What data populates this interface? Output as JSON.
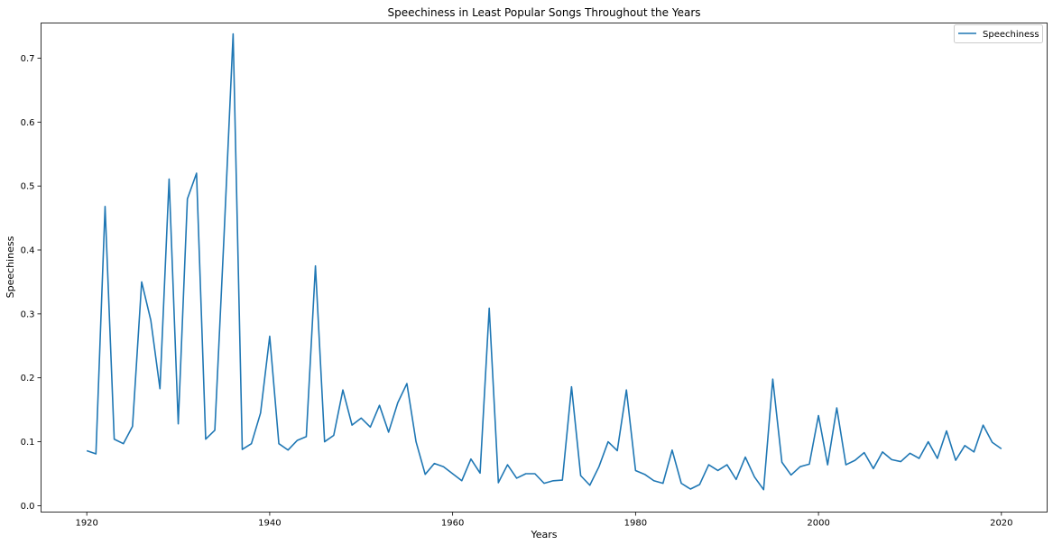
{
  "chart_data": {
    "type": "line",
    "title": "Speechiness in Least Popular Songs Throughout the Years",
    "xlabel": "Years",
    "ylabel": "Speechiness",
    "xlim": [
      1915,
      2025
    ],
    "ylim": [
      -0.01,
      0.755
    ],
    "xticks": [
      1920,
      1940,
      1960,
      1980,
      2000,
      2020
    ],
    "yticks": [
      0.0,
      0.1,
      0.2,
      0.3,
      0.4,
      0.5,
      0.6,
      0.7
    ],
    "ytick_labels": [
      "0.0",
      "0.1",
      "0.2",
      "0.3",
      "0.4",
      "0.5",
      "0.6",
      "0.7"
    ],
    "grid": false,
    "legend_position": "top-right",
    "series": [
      {
        "name": "Speechiness",
        "color": "#1f77b4",
        "x": [
          1920,
          1921,
          1922,
          1923,
          1924,
          1925,
          1926,
          1927,
          1928,
          1929,
          1930,
          1931,
          1932,
          1933,
          1934,
          1935,
          1936,
          1937,
          1938,
          1939,
          1940,
          1941,
          1942,
          1943,
          1944,
          1945,
          1946,
          1947,
          1948,
          1949,
          1950,
          1951,
          1952,
          1953,
          1954,
          1955,
          1956,
          1957,
          1958,
          1959,
          1960,
          1961,
          1962,
          1963,
          1964,
          1965,
          1966,
          1967,
          1968,
          1969,
          1970,
          1971,
          1972,
          1973,
          1974,
          1975,
          1976,
          1977,
          1978,
          1979,
          1980,
          1981,
          1982,
          1983,
          1984,
          1985,
          1986,
          1987,
          1988,
          1989,
          1990,
          1991,
          1992,
          1993,
          1994,
          1995,
          1996,
          1997,
          1998,
          1999,
          2000,
          2001,
          2002,
          2003,
          2004,
          2005,
          2006,
          2007,
          2008,
          2009,
          2010,
          2011,
          2012,
          2013,
          2014,
          2015,
          2016,
          2017,
          2018,
          2019,
          2020
        ],
        "values": [
          0.086,
          0.081,
          0.468,
          0.104,
          0.097,
          0.124,
          0.35,
          0.29,
          0.183,
          0.511,
          0.128,
          0.48,
          0.52,
          0.104,
          0.118,
          0.42,
          0.738,
          0.088,
          0.097,
          0.145,
          0.265,
          0.097,
          0.087,
          0.102,
          0.108,
          0.375,
          0.1,
          0.11,
          0.181,
          0.126,
          0.137,
          0.123,
          0.157,
          0.115,
          0.161,
          0.191,
          0.1,
          0.049,
          0.066,
          0.061,
          0.05,
          0.039,
          0.073,
          0.051,
          0.309,
          0.036,
          0.064,
          0.043,
          0.05,
          0.05,
          0.035,
          0.039,
          0.04,
          0.186,
          0.047,
          0.032,
          0.061,
          0.1,
          0.086,
          0.181,
          0.055,
          0.049,
          0.039,
          0.035,
          0.087,
          0.035,
          0.026,
          0.033,
          0.064,
          0.055,
          0.064,
          0.041,
          0.076,
          0.045,
          0.025,
          0.198,
          0.068,
          0.048,
          0.061,
          0.065,
          0.141,
          0.064,
          0.153,
          0.064,
          0.071,
          0.083,
          0.058,
          0.084,
          0.072,
          0.069,
          0.082,
          0.074,
          0.1,
          0.074,
          0.117,
          0.071,
          0.094,
          0.084,
          0.126,
          0.099,
          0.089
        ]
      }
    ]
  }
}
